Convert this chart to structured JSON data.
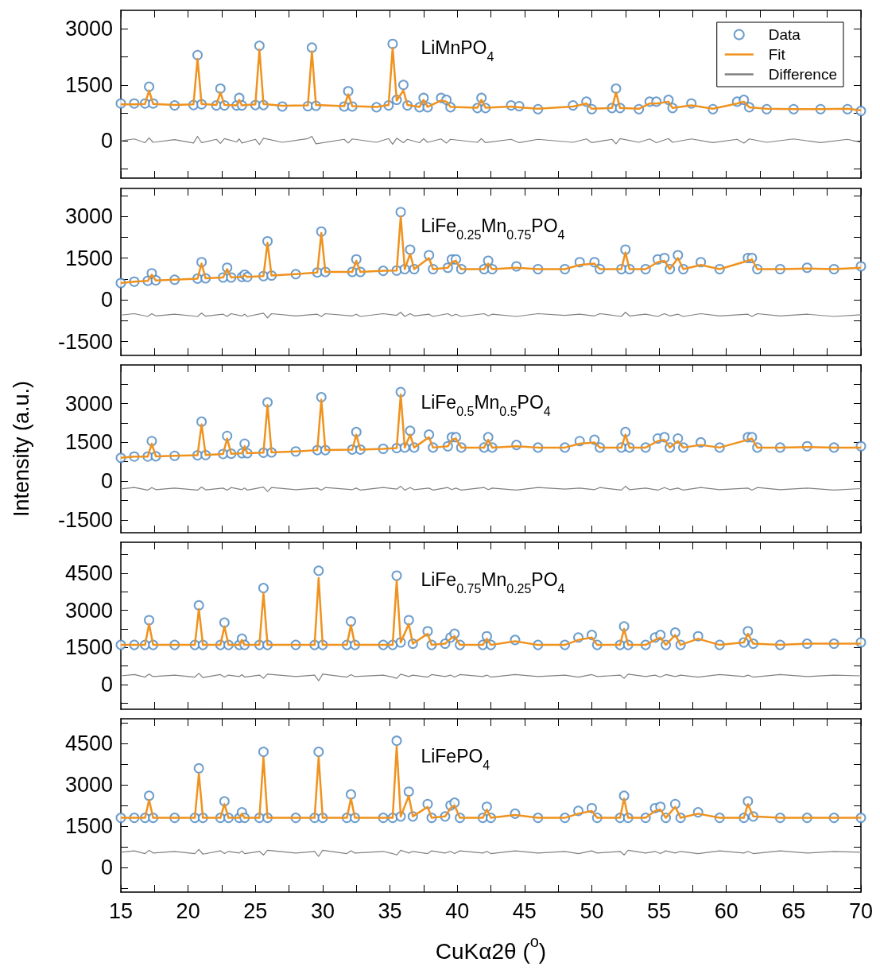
{
  "chart_data": [
    {
      "type": "scatter",
      "title": "LiMnPO$_{4}$",
      "legend": "top right",
      "tick_labels": "y",
      "x": [
        15,
        16,
        16.8,
        17.1,
        17.4,
        19,
        20.4,
        20.7,
        21.0,
        22.1,
        22.4,
        22.7,
        23.6,
        23.8,
        24.0,
        25.0,
        25.3,
        25.6,
        27,
        28.9,
        29.2,
        29.5,
        31.6,
        31.9,
        32.2,
        34,
        34.9,
        35.2,
        35.5,
        36.0,
        36.3,
        37.2,
        37.5,
        37.8,
        38.8,
        39.2,
        39.5,
        41.5,
        41.8,
        42.1,
        44.0,
        44.6,
        46,
        48.6,
        49.6,
        50.0,
        51.5,
        51.8,
        52.1,
        53.5,
        54.3,
        54.8,
        55.7,
        56.0,
        57.4,
        59,
        60.8,
        61.3,
        61.7,
        63,
        65,
        67,
        69,
        70
      ],
      "xlim": [
        15,
        70
      ],
      "xticks": [
        15,
        {
          "value": 17.5,
          "label": null
        },
        20,
        {
          "value": 22.5,
          "label": null
        },
        25,
        {
          "value": 27.5,
          "label": null
        },
        30,
        {
          "value": 32.5,
          "label": null
        },
        35,
        {
          "value": 37.5,
          "label": null
        },
        40,
        {
          "value": 42.5,
          "label": null
        },
        45,
        {
          "value": 47.5,
          "label": null
        },
        50,
        {
          "value": 52.5,
          "label": null
        },
        55,
        {
          "value": 57.5,
          "label": null
        },
        60,
        {
          "value": 62.5,
          "label": null
        },
        65,
        {
          "value": 67.5,
          "label": null
        },
        70
      ],
      "ylim": [
        -1000,
        3500
      ],
      "yticks": [
        {
          "value": -750,
          "label": null
        },
        0,
        {
          "value": 750,
          "label": null
        },
        1500,
        {
          "value": 2250,
          "label": null
        },
        3000
      ],
      "series": [
        {
          "name": "Data",
          "type": "scatter",
          "marker": "circle",
          "color": "#4a86c0",
          "values": [
            1000,
            1000,
            1000,
            1450,
            1000,
            950,
            960,
            2300,
            980,
            950,
            1400,
            950,
            950,
            1150,
            950,
            960,
            2550,
            960,
            920,
            930,
            2500,
            940,
            920,
            1330,
            920,
            900,
            950,
            2600,
            1100,
            1500,
            950,
            900,
            1150,
            900,
            1150,
            1100,
            900,
            880,
            1150,
            880,
            950,
            930,
            850,
            950,
            1050,
            850,
            880,
            1400,
            880,
            850,
            1050,
            1050,
            1100,
            880,
            1000,
            850,
            1050,
            1100,
            900,
            850,
            850,
            850,
            850,
            800
          ]
        },
        {
          "name": "Fit",
          "type": "line",
          "marker": "none",
          "color": "#f0921e",
          "values": [
            980,
            980,
            990,
            1350,
            990,
            960,
            980,
            2200,
            990,
            960,
            1300,
            960,
            950,
            1100,
            950,
            980,
            2450,
            990,
            940,
            950,
            2400,
            960,
            930,
            1250,
            930,
            910,
            960,
            2500,
            1080,
            1350,
            960,
            910,
            1100,
            910,
            1080,
            1050,
            910,
            890,
            1100,
            890,
            920,
            900,
            860,
            920,
            1000,
            860,
            880,
            1300,
            880,
            860,
            1000,
            1000,
            1050,
            880,
            950,
            860,
            1000,
            1050,
            900,
            860,
            850,
            850,
            860,
            820
          ]
        },
        {
          "name": "Difference",
          "type": "line",
          "marker": "none",
          "color": "#808080",
          "values": [
            0,
            50,
            -50,
            80,
            -40,
            30,
            -60,
            120,
            -50,
            40,
            -70,
            60,
            -30,
            50,
            -60,
            40,
            -100,
            70,
            -40,
            60,
            120,
            -80,
            40,
            -60,
            50,
            -40,
            60,
            -90,
            70,
            -50,
            40,
            -50,
            60,
            -40,
            50,
            -60,
            40,
            -40,
            60,
            -50,
            40,
            -50,
            40,
            -40,
            50,
            -50,
            40,
            -80,
            60,
            -40,
            50,
            -50,
            60,
            -40,
            50,
            -50,
            40,
            -60,
            50,
            -40,
            50,
            -50,
            40,
            -40
          ]
        }
      ]
    },
    {
      "type": "scatter",
      "title": "LiFe$_{0.25}$Mn$_{0.75}$PO$_{4}$",
      "tick_labels": "y",
      "x": [
        15,
        16,
        17.0,
        17.3,
        17.6,
        19,
        20.7,
        21.0,
        21.3,
        22.6,
        22.9,
        23.2,
        24.0,
        24.2,
        24.4,
        25.6,
        25.9,
        26.2,
        28,
        29.6,
        29.9,
        30.2,
        32.2,
        32.5,
        32.8,
        34.5,
        35.5,
        35.8,
        36.1,
        36.5,
        36.8,
        37.9,
        38.2,
        39.3,
        39.6,
        39.9,
        40.3,
        42.0,
        42.3,
        42.6,
        44.4,
        46,
        48,
        49.1,
        50.2,
        50.6,
        52.2,
        52.5,
        52.8,
        54.0,
        54.9,
        55.4,
        55.8,
        56.4,
        56.8,
        58.1,
        59.5,
        61.6,
        61.9,
        62.3,
        64,
        66,
        68,
        70
      ],
      "xlim": [
        15,
        70
      ],
      "xticks": [
        15,
        {
          "value": 17.5,
          "label": null
        },
        20,
        {
          "value": 22.5,
          "label": null
        },
        25,
        {
          "value": 27.5,
          "label": null
        },
        30,
        {
          "value": 32.5,
          "label": null
        },
        35,
        {
          "value": 37.5,
          "label": null
        },
        40,
        {
          "value": 42.5,
          "label": null
        },
        45,
        {
          "value": 47.5,
          "label": null
        },
        50,
        {
          "value": 52.5,
          "label": null
        },
        55,
        {
          "value": 57.5,
          "label": null
        },
        60,
        {
          "value": 62.5,
          "label": null
        },
        65,
        {
          "value": 67.5,
          "label": null
        },
        70
      ],
      "ylim": [
        -2000,
        4000
      ],
      "yticks": [
        -1500,
        {
          "value": -750,
          "label": null
        },
        0,
        {
          "value": 750,
          "label": null
        },
        1500,
        {
          "value": 2250,
          "label": null
        },
        3000,
        {
          "value": 3750,
          "label": null
        }
      ],
      "series": [
        {
          "type": "scatter",
          "marker": "circle",
          "color": "#4a86c0",
          "values": [
            600,
            650,
            680,
            950,
            700,
            720,
            760,
            1350,
            770,
            800,
            1150,
            800,
            820,
            900,
            820,
            850,
            2100,
            870,
            920,
            980,
            2450,
            1000,
            1000,
            1450,
            1000,
            1040,
            1050,
            3150,
            1100,
            1800,
            1100,
            1600,
            1100,
            1150,
            1450,
            1450,
            1100,
            1100,
            1400,
            1100,
            1200,
            1100,
            1100,
            1350,
            1350,
            1100,
            1100,
            1800,
            1100,
            1100,
            1450,
            1500,
            1100,
            1600,
            1100,
            1350,
            1100,
            1500,
            1500,
            1100,
            1100,
            1150,
            1100,
            1200
          ]
        },
        {
          "type": "line",
          "marker": "none",
          "color": "#f0921e",
          "values": [
            600,
            650,
            680,
            900,
            690,
            720,
            760,
            1300,
            770,
            800,
            1100,
            800,
            820,
            880,
            820,
            850,
            2050,
            870,
            920,
            980,
            2400,
            1000,
            1000,
            1400,
            1000,
            1040,
            1050,
            3000,
            1100,
            1650,
            1100,
            1500,
            1100,
            1150,
            1350,
            1400,
            1100,
            1100,
            1300,
            1100,
            1150,
            1100,
            1100,
            1250,
            1300,
            1100,
            1100,
            1700,
            1100,
            1100,
            1350,
            1400,
            1100,
            1500,
            1100,
            1250,
            1100,
            1400,
            1450,
            1100,
            1100,
            1120,
            1100,
            1150
          ]
        },
        {
          "type": "line",
          "marker": "none",
          "color": "#808080",
          "values": [
            -550,
            -500,
            -600,
            -500,
            -580,
            -520,
            -600,
            -480,
            -590,
            -520,
            -600,
            -500,
            -580,
            -520,
            -600,
            -480,
            -650,
            -500,
            -580,
            -520,
            -600,
            -500,
            -580,
            -520,
            -600,
            -500,
            -560,
            -450,
            -600,
            -500,
            -580,
            -520,
            -600,
            -500,
            -580,
            -520,
            -600,
            -500,
            -580,
            -520,
            -600,
            -500,
            -560,
            -520,
            -580,
            -500,
            -600,
            -450,
            -580,
            -520,
            -600,
            -500,
            -580,
            -520,
            -600,
            -500,
            -580,
            -520,
            -600,
            -500,
            -580,
            -520,
            -600,
            -540
          ]
        }
      ]
    },
    {
      "type": "scatter",
      "title": "LiFe$_{0.5}$Mn$_{0.5}$PO$_{4}$",
      "ylabel": "Intensity (a.u.)",
      "tick_labels": "y",
      "x": [
        15,
        16,
        17.0,
        17.3,
        17.6,
        19,
        20.7,
        21.0,
        21.3,
        22.6,
        22.9,
        23.2,
        24.0,
        24.2,
        24.4,
        25.6,
        25.9,
        26.2,
        28,
        29.6,
        29.9,
        30.2,
        32.2,
        32.5,
        32.8,
        34.5,
        35.5,
        35.8,
        36.1,
        36.5,
        36.8,
        37.9,
        38.2,
        39.3,
        39.6,
        39.9,
        40.3,
        42.0,
        42.3,
        42.6,
        44.4,
        46,
        48,
        49.1,
        50.2,
        50.6,
        52.2,
        52.5,
        52.8,
        54.0,
        54.9,
        55.4,
        55.8,
        56.4,
        56.8,
        58.1,
        59.5,
        61.6,
        61.9,
        62.3,
        64,
        66,
        68,
        70
      ],
      "xlim": [
        15,
        70
      ],
      "xticks": [
        15,
        {
          "value": 17.5,
          "label": null
        },
        20,
        {
          "value": 22.5,
          "label": null
        },
        25,
        {
          "value": 27.5,
          "label": null
        },
        30,
        {
          "value": 32.5,
          "label": null
        },
        35,
        {
          "value": 37.5,
          "label": null
        },
        40,
        {
          "value": 42.5,
          "label": null
        },
        45,
        {
          "value": 47.5,
          "label": null
        },
        50,
        {
          "value": 52.5,
          "label": null
        },
        55,
        {
          "value": 57.5,
          "label": null
        },
        60,
        {
          "value": 62.5,
          "label": null
        },
        65,
        {
          "value": 67.5,
          "label": null
        },
        70
      ],
      "ylim": [
        -2000,
        4500
      ],
      "yticks": [
        -1500,
        {
          "value": -750,
          "label": null
        },
        0,
        {
          "value": 750,
          "label": null
        },
        1500,
        {
          "value": 2250,
          "label": null
        },
        3000,
        {
          "value": 3750,
          "label": null
        }
      ],
      "series": [
        {
          "type": "scatter",
          "marker": "circle",
          "color": "#4a86c0",
          "values": [
            900,
            950,
            950,
            1550,
            960,
            980,
            1000,
            2300,
            1010,
            1050,
            1750,
            1060,
            1080,
            1450,
            1080,
            1100,
            3050,
            1110,
            1150,
            1200,
            3250,
            1200,
            1220,
            1900,
            1220,
            1250,
            1280,
            3450,
            1300,
            1950,
            1300,
            1800,
            1300,
            1350,
            1700,
            1700,
            1300,
            1300,
            1700,
            1300,
            1400,
            1300,
            1300,
            1550,
            1600,
            1300,
            1300,
            1900,
            1300,
            1300,
            1650,
            1700,
            1300,
            1650,
            1300,
            1500,
            1300,
            1700,
            1700,
            1300,
            1300,
            1350,
            1300,
            1350
          ]
        },
        {
          "type": "line",
          "marker": "none",
          "color": "#f0921e",
          "values": [
            900,
            950,
            950,
            1450,
            960,
            980,
            1000,
            2200,
            1010,
            1050,
            1650,
            1060,
            1080,
            1350,
            1080,
            1100,
            2950,
            1110,
            1150,
            1200,
            3150,
            1200,
            1220,
            1800,
            1220,
            1250,
            1280,
            3350,
            1300,
            1800,
            1300,
            1700,
            1300,
            1350,
            1600,
            1650,
            1300,
            1300,
            1600,
            1300,
            1350,
            1300,
            1300,
            1450,
            1500,
            1300,
            1300,
            1800,
            1300,
            1300,
            1550,
            1600,
            1300,
            1550,
            1300,
            1400,
            1300,
            1600,
            1650,
            1300,
            1300,
            1320,
            1300,
            1300
          ]
        },
        {
          "type": "line",
          "marker": "none",
          "color": "#808080",
          "values": [
            -300,
            -250,
            -350,
            -250,
            -330,
            -270,
            -350,
            -230,
            -340,
            -270,
            -350,
            -250,
            -330,
            -270,
            -350,
            -230,
            -400,
            -250,
            -330,
            -270,
            -350,
            -250,
            -330,
            -270,
            -350,
            -250,
            -310,
            -200,
            -350,
            -250,
            -330,
            -270,
            -350,
            -250,
            -330,
            -270,
            -350,
            -250,
            -330,
            -270,
            -350,
            -250,
            -310,
            -270,
            -330,
            -250,
            -350,
            -200,
            -330,
            -270,
            -350,
            -250,
            -330,
            -270,
            -350,
            -250,
            -330,
            -270,
            -350,
            -250,
            -330,
            -270,
            -350,
            -290
          ]
        }
      ]
    },
    {
      "type": "scatter",
      "title": "LiFe$_{0.75}$Mn$_{0.25}$PO$_{4}$",
      "tick_labels": "y",
      "x": [
        15,
        16,
        16.8,
        17.1,
        17.4,
        19,
        20.5,
        20.8,
        21.1,
        22.4,
        22.7,
        23.0,
        23.8,
        24.0,
        24.2,
        25.3,
        25.6,
        25.9,
        28,
        29.4,
        29.7,
        30.0,
        31.8,
        32.1,
        32.4,
        34.5,
        35.2,
        35.5,
        35.8,
        36.4,
        36.7,
        37.8,
        38.1,
        39.1,
        39.5,
        39.8,
        40.2,
        41.9,
        42.2,
        42.5,
        44.3,
        46,
        48,
        49.0,
        50.0,
        50.4,
        52.1,
        52.4,
        52.7,
        54.0,
        54.7,
        55.1,
        55.5,
        56.2,
        56.6,
        57.9,
        59.5,
        61.3,
        61.6,
        62.0,
        64,
        66,
        68,
        70
      ],
      "xlim": [
        15,
        70
      ],
      "xticks": [
        15,
        {
          "value": 17.5,
          "label": null
        },
        20,
        {
          "value": 22.5,
          "label": null
        },
        25,
        {
          "value": 27.5,
          "label": null
        },
        30,
        {
          "value": 32.5,
          "label": null
        },
        35,
        {
          "value": 37.5,
          "label": null
        },
        40,
        {
          "value": 42.5,
          "label": null
        },
        45,
        {
          "value": 47.5,
          "label": null
        },
        50,
        {
          "value": 52.5,
          "label": null
        },
        55,
        {
          "value": 57.5,
          "label": null
        },
        60,
        {
          "value": 62.5,
          "label": null
        },
        65,
        {
          "value": 67.5,
          "label": null
        },
        70
      ],
      "ylim": [
        -1000,
        5750
      ],
      "yticks": [
        {
          "value": -750,
          "label": null
        },
        0,
        {
          "value": 750,
          "label": null
        },
        1500,
        {
          "value": 2250,
          "label": null
        },
        3000,
        {
          "value": 3750,
          "label": null
        },
        4500,
        {
          "value": 5250,
          "label": null
        }
      ],
      "series": [
        {
          "type": "scatter",
          "marker": "circle",
          "color": "#4a86c0",
          "values": [
            1600,
            1600,
            1600,
            2600,
            1600,
            1600,
            1600,
            3200,
            1600,
            1600,
            2500,
            1600,
            1600,
            1850,
            1600,
            1600,
            3900,
            1600,
            1600,
            1600,
            4600,
            1600,
            1600,
            2550,
            1600,
            1600,
            1600,
            4400,
            1700,
            2600,
            1650,
            2150,
            1600,
            1650,
            1900,
            2050,
            1600,
            1600,
            1950,
            1600,
            1800,
            1600,
            1600,
            1900,
            2000,
            1600,
            1600,
            2350,
            1600,
            1600,
            1900,
            2000,
            1600,
            2100,
            1600,
            1950,
            1600,
            1700,
            2150,
            1650,
            1600,
            1650,
            1650,
            1700
          ]
        },
        {
          "type": "line",
          "marker": "none",
          "color": "#f0921e",
          "values": [
            1600,
            1600,
            1600,
            2450,
            1600,
            1600,
            1600,
            3050,
            1600,
            1600,
            2350,
            1600,
            1600,
            1800,
            1600,
            1600,
            3700,
            1600,
            1600,
            1600,
            4300,
            1600,
            1600,
            2400,
            1600,
            1600,
            1600,
            4200,
            1700,
            2450,
            1650,
            2050,
            1600,
            1650,
            1850,
            1950,
            1600,
            1600,
            1850,
            1600,
            1750,
            1600,
            1600,
            1800,
            1900,
            1600,
            1600,
            2250,
            1600,
            1600,
            1800,
            1900,
            1600,
            2000,
            1600,
            1850,
            1600,
            1700,
            2050,
            1650,
            1600,
            1650,
            1650,
            1650
          ]
        },
        {
          "type": "line",
          "marker": "none",
          "color": "#808080",
          "values": [
            350,
            400,
            300,
            420,
            320,
            380,
            300,
            450,
            280,
            400,
            300,
            380,
            320,
            400,
            300,
            380,
            250,
            420,
            320,
            380,
            150,
            420,
            300,
            400,
            320,
            380,
            300,
            250,
            420,
            320,
            380,
            300,
            400,
            320,
            380,
            300,
            400,
            320,
            380,
            300,
            400,
            320,
            380,
            300,
            400,
            320,
            380,
            250,
            420,
            320,
            380,
            300,
            400,
            320,
            380,
            300,
            400,
            320,
            380,
            300,
            400,
            320,
            380,
            350
          ]
        }
      ]
    },
    {
      "type": "scatter",
      "title": "LiFePO$_{4}$",
      "xlabel": "CuKα2θ ($^{o}$)",
      "x": [
        15,
        16,
        16.8,
        17.1,
        17.4,
        19,
        20.5,
        20.8,
        21.1,
        22.4,
        22.7,
        23.0,
        23.8,
        24.0,
        24.2,
        25.3,
        25.6,
        25.9,
        28,
        29.4,
        29.7,
        30.0,
        31.8,
        32.1,
        32.4,
        34.5,
        35.2,
        35.5,
        35.8,
        36.4,
        36.7,
        37.8,
        38.1,
        39.1,
        39.5,
        39.8,
        40.2,
        41.9,
        42.2,
        42.5,
        44.3,
        46,
        48,
        49.0,
        50.0,
        50.4,
        52.1,
        52.4,
        52.7,
        54.0,
        54.7,
        55.1,
        55.5,
        56.2,
        56.6,
        57.9,
        59.5,
        61.3,
        61.6,
        62.0,
        64,
        66,
        68,
        70
      ],
      "xlim": [
        15,
        70
      ],
      "xticks": [
        15,
        {
          "value": 17.5,
          "label": null
        },
        20,
        {
          "value": 22.5,
          "label": null
        },
        25,
        {
          "value": 27.5,
          "label": null
        },
        30,
        {
          "value": 32.5,
          "label": null
        },
        35,
        {
          "value": 37.5,
          "label": null
        },
        40,
        {
          "value": 42.5,
          "label": null
        },
        45,
        {
          "value": 47.5,
          "label": null
        },
        50,
        {
          "value": 52.5,
          "label": null
        },
        55,
        {
          "value": 57.5,
          "label": null
        },
        60,
        {
          "value": 62.5,
          "label": null
        },
        65,
        {
          "value": 67.5,
          "label": null
        },
        70
      ],
      "ylim": [
        -900,
        5400
      ],
      "yticks": [
        {
          "value": -750,
          "label": null
        },
        0,
        {
          "value": 750,
          "label": null
        },
        1500,
        {
          "value": 2250,
          "label": null
        },
        3000,
        {
          "value": 3750,
          "label": null
        },
        4500,
        {
          "value": 5250,
          "label": null
        }
      ],
      "series": [
        {
          "type": "scatter",
          "marker": "circle",
          "color": "#4a86c0",
          "values": [
            1800,
            1800,
            1800,
            2600,
            1800,
            1800,
            1800,
            3600,
            1800,
            1800,
            2400,
            1800,
            1800,
            2000,
            1800,
            1800,
            4200,
            1800,
            1800,
            1800,
            4200,
            1800,
            1800,
            2650,
            1800,
            1800,
            1800,
            4600,
            1850,
            2750,
            1850,
            2300,
            1800,
            1850,
            2250,
            2350,
            1800,
            1800,
            2200,
            1800,
            1950,
            1800,
            1800,
            2050,
            2150,
            1800,
            1800,
            2600,
            1800,
            1800,
            2150,
            2200,
            1800,
            2300,
            1800,
            2000,
            1800,
            1800,
            2400,
            1850,
            1800,
            1800,
            1800,
            1800
          ]
        },
        {
          "type": "line",
          "marker": "none",
          "color": "#f0921e",
          "values": [
            1800,
            1800,
            1800,
            2450,
            1800,
            1800,
            1800,
            3400,
            1800,
            1800,
            2300,
            1800,
            1800,
            1950,
            1800,
            1800,
            4000,
            1800,
            1800,
            1800,
            4000,
            1800,
            1800,
            2500,
            1800,
            1800,
            1800,
            4400,
            1850,
            2600,
            1850,
            2200,
            1800,
            1850,
            2150,
            2250,
            1800,
            1800,
            2100,
            1800,
            1900,
            1800,
            1800,
            1950,
            2050,
            1800,
            1800,
            2500,
            1800,
            1800,
            2050,
            2100,
            1800,
            2200,
            1800,
            1950,
            1800,
            1800,
            2300,
            1850,
            1800,
            1800,
            1800,
            1800
          ]
        },
        {
          "type": "line",
          "marker": "none",
          "color": "#808080",
          "values": [
            550,
            600,
            500,
            620,
            520,
            580,
            500,
            650,
            480,
            600,
            500,
            580,
            520,
            600,
            500,
            580,
            450,
            620,
            520,
            580,
            400,
            620,
            500,
            600,
            520,
            580,
            500,
            450,
            620,
            520,
            580,
            500,
            600,
            520,
            580,
            500,
            600,
            520,
            580,
            500,
            600,
            520,
            580,
            500,
            600,
            520,
            580,
            450,
            620,
            520,
            580,
            500,
            600,
            520,
            580,
            500,
            600,
            520,
            580,
            500,
            600,
            520,
            580,
            550
          ]
        }
      ]
    }
  ]
}
